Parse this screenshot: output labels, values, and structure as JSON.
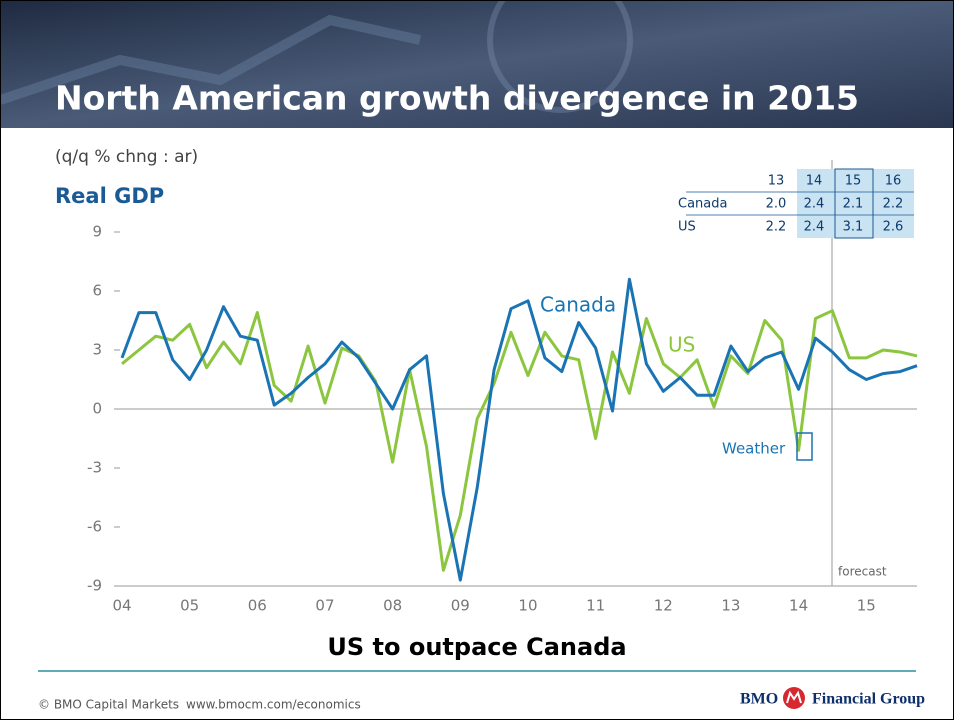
{
  "header": {
    "title": "North American growth divergence in 2015"
  },
  "chart_data": {
    "type": "line",
    "subtitle": "(q/q % chng : ar)",
    "title": "Real GDP",
    "bottom_title": "US to outpace Canada",
    "categories": [
      "04",
      null,
      null,
      null,
      "05",
      null,
      null,
      null,
      "06",
      null,
      null,
      null,
      "07",
      null,
      null,
      null,
      "08",
      null,
      null,
      null,
      "09",
      null,
      null,
      null,
      "10",
      null,
      null,
      null,
      "11",
      null,
      null,
      null,
      "12",
      null,
      null,
      null,
      "13",
      null,
      null,
      null,
      "14",
      null,
      null,
      null,
      "15",
      null,
      null,
      null
    ],
    "ylim": [
      -9,
      9
    ],
    "yticks": [
      -9,
      -6,
      -3,
      0,
      3,
      6,
      9
    ],
    "series": [
      {
        "name": "Canada",
        "color": "#1a74b3",
        "values": [
          2.6,
          4.9,
          4.9,
          2.5,
          1.5,
          3.0,
          5.2,
          3.7,
          3.5,
          0.2,
          0.8,
          1.6,
          2.3,
          3.4,
          2.6,
          1.3,
          0.0,
          2.0,
          2.7,
          -4.3,
          -8.7,
          -4.0,
          2.0,
          5.1,
          5.5,
          2.6,
          1.9,
          4.4,
          3.1,
          -0.1,
          6.6,
          2.3,
          0.9,
          1.6,
          0.7,
          0.7,
          3.2,
          1.9,
          2.6,
          2.9,
          1.0,
          3.6,
          2.9,
          2.0,
          1.5,
          1.8,
          1.9,
          2.2
        ]
      },
      {
        "name": "US",
        "color": "#8cc63f",
        "values": [
          2.3,
          3.0,
          3.7,
          3.5,
          4.3,
          2.1,
          3.4,
          2.3,
          4.9,
          1.2,
          0.4,
          3.2,
          0.3,
          3.1,
          2.7,
          1.4,
          -2.7,
          2.0,
          -1.9,
          -8.2,
          -5.4,
          -0.5,
          1.3,
          3.9,
          1.7,
          3.9,
          2.7,
          2.5,
          -1.5,
          2.9,
          0.8,
          4.6,
          2.3,
          1.6,
          2.5,
          0.1,
          2.7,
          1.8,
          4.5,
          3.5,
          -2.1,
          4.6,
          5.0,
          2.6,
          2.6,
          3.0,
          2.9,
          2.7
        ]
      }
    ],
    "annotations": {
      "weather": "Weather",
      "forecast": "forecast"
    },
    "table": {
      "columns": [
        "13",
        "14",
        "15",
        "16"
      ],
      "rows": [
        {
          "label": "Canada",
          "values": [
            "2.0",
            "2.4",
            "2.1",
            "2.2"
          ]
        },
        {
          "label": "US",
          "values": [
            "2.2",
            "2.4",
            "3.1",
            "2.6"
          ]
        }
      ]
    }
  },
  "footer": {
    "copyright": "© BMO Capital Markets",
    "url": "www.bmocm.com/economics",
    "brand": "BMO",
    "group": "Financial Group"
  }
}
